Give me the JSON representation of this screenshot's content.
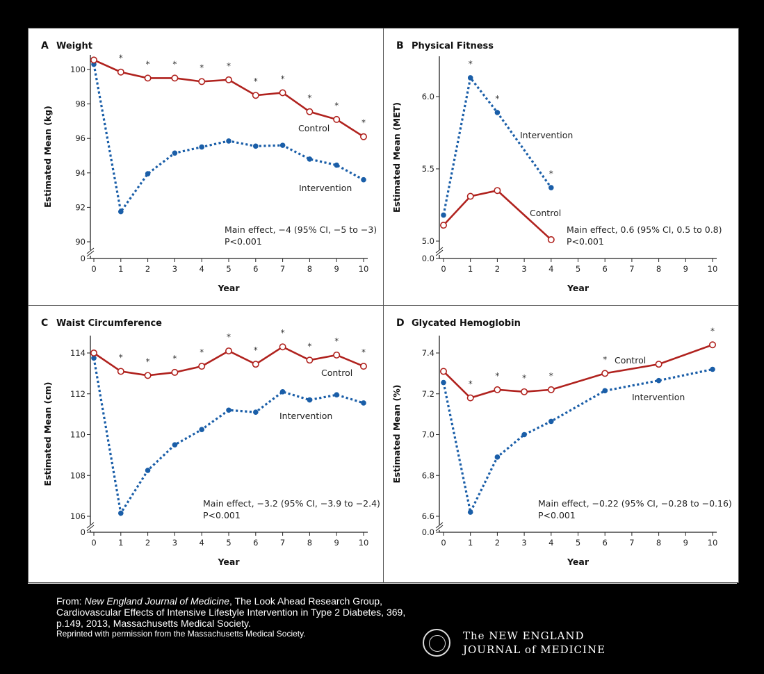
{
  "colors": {
    "control": "#b0221e",
    "intervention": "#1a5ea8"
  },
  "chart_data": [
    {
      "type": "line",
      "letter": "A",
      "title": "Weight",
      "ylabel": "Estimated Mean (kg)",
      "xlabel": "Year",
      "xticks": [
        0,
        1,
        2,
        3,
        4,
        5,
        6,
        7,
        8,
        9,
        10
      ],
      "yticks": [
        90,
        92,
        94,
        96,
        98,
        100
      ],
      "ybreak_zero": "0",
      "ylim": [
        90,
        100.8
      ],
      "series": [
        {
          "name": "Control",
          "x": [
            0,
            1,
            2,
            3,
            4,
            5,
            6,
            7,
            8,
            9,
            10
          ],
          "values": [
            100.55,
            99.85,
            99.5,
            99.5,
            99.3,
            99.4,
            98.5,
            98.65,
            97.55,
            97.1,
            96.1
          ]
        },
        {
          "name": "Intervention",
          "x": [
            0,
            1,
            2,
            3,
            4,
            5,
            6,
            7,
            8,
            9,
            10
          ],
          "values": [
            100.3,
            91.75,
            93.95,
            95.15,
            95.5,
            95.85,
            95.55,
            95.6,
            94.8,
            94.45,
            93.6
          ]
        }
      ],
      "significant_years": [
        1,
        2,
        3,
        4,
        5,
        6,
        7,
        8,
        9,
        10
      ],
      "annotation": [
        "Main effect, −4 (95% CI, −5 to −3)",
        "P<0.001"
      ]
    },
    {
      "type": "line",
      "letter": "B",
      "title": "Physical Fitness",
      "ylabel": "Estimated Mean (MET)",
      "xlabel": "Year",
      "xticks": [
        0,
        1,
        2,
        3,
        4,
        5,
        6,
        7,
        8,
        9,
        10
      ],
      "yticks": [
        "5.0",
        "5.5",
        "6.0"
      ],
      "ybreak_zero": "0.0",
      "ylim": [
        5.0,
        6.3
      ],
      "series": [
        {
          "name": "Control",
          "x": [
            0,
            1,
            2,
            4
          ],
          "values": [
            5.11,
            5.31,
            5.35,
            5.01
          ]
        },
        {
          "name": "Intervention",
          "x": [
            0,
            1,
            2,
            4
          ],
          "values": [
            5.18,
            6.13,
            5.89,
            5.37
          ]
        }
      ],
      "significant_years": [
        1,
        2,
        4
      ],
      "annotation": [
        "Main effect, 0.6 (95% CI, 0.5 to 0.8)",
        "P<0.001"
      ]
    },
    {
      "type": "line",
      "letter": "C",
      "title": "Waist Circumference",
      "ylabel": "Estimated Mean (cm)",
      "xlabel": "Year",
      "xticks": [
        0,
        1,
        2,
        3,
        4,
        5,
        6,
        7,
        8,
        9,
        10
      ],
      "yticks": [
        106,
        108,
        110,
        112,
        114
      ],
      "ybreak_zero": "0",
      "ylim": [
        106,
        114.9
      ],
      "series": [
        {
          "name": "Control",
          "x": [
            0,
            1,
            2,
            3,
            4,
            5,
            6,
            7,
            8,
            9,
            10
          ],
          "values": [
            114.0,
            113.1,
            112.9,
            113.05,
            113.35,
            114.1,
            113.45,
            114.3,
            113.65,
            113.9,
            113.35
          ]
        },
        {
          "name": "Intervention",
          "x": [
            0,
            1,
            2,
            3,
            4,
            5,
            6,
            7,
            8,
            9,
            10
          ],
          "values": [
            113.75,
            106.15,
            108.25,
            109.5,
            110.25,
            111.2,
            111.1,
            112.1,
            111.7,
            111.95,
            111.55
          ]
        }
      ],
      "significant_years": [
        1,
        2,
        3,
        4,
        5,
        6,
        7,
        8,
        9,
        10
      ],
      "annotation": [
        "Main effect, −3.2 (95% CI, −3.9 to −2.4)",
        "P<0.001"
      ]
    },
    {
      "type": "line",
      "letter": "D",
      "title": "Glycated Hemoglobin",
      "ylabel": "Estimated Mean (%)",
      "xlabel": "Year",
      "xticks": [
        0,
        1,
        2,
        3,
        4,
        5,
        6,
        7,
        8,
        9,
        10
      ],
      "yticks": [
        "6.6",
        "6.8",
        "7.0",
        "7.2",
        "7.4"
      ],
      "ybreak_zero": "0.0",
      "ylim": [
        6.6,
        7.49
      ],
      "series": [
        {
          "name": "Control",
          "x": [
            0,
            1,
            2,
            3,
            4,
            6,
            8,
            10
          ],
          "values": [
            7.31,
            7.18,
            7.22,
            7.21,
            7.22,
            7.3,
            7.345,
            7.44
          ]
        },
        {
          "name": "Intervention",
          "x": [
            0,
            1,
            2,
            3,
            4,
            6,
            8,
            10
          ],
          "values": [
            7.255,
            6.62,
            6.89,
            7.0,
            7.065,
            7.215,
            7.265,
            7.32
          ]
        }
      ],
      "significant_years": [
        1,
        2,
        3,
        4,
        6,
        10
      ],
      "annotation": [
        "Main effect, −0.22 (95% CI, −0.28 to −0.16)",
        "P<0.001"
      ]
    }
  ],
  "footer": {
    "from_label": "From: ",
    "journal_italic": "New England Journal of Medicine",
    "line1_rest": ", The Look Ahead Research Group,",
    "line2": "Cardiovascular Effects of Intensive Lifestyle Intervention in Type 2 Diabetes, 369,",
    "line3": "p.149, 2013, Massachusetts Medical Society.",
    "line4": "Reprinted with permission from the Massachusetts Medical Society.",
    "logo_line1": "The NEW ENGLAND",
    "logo_line2": "JOURNAL of MEDICINE"
  }
}
